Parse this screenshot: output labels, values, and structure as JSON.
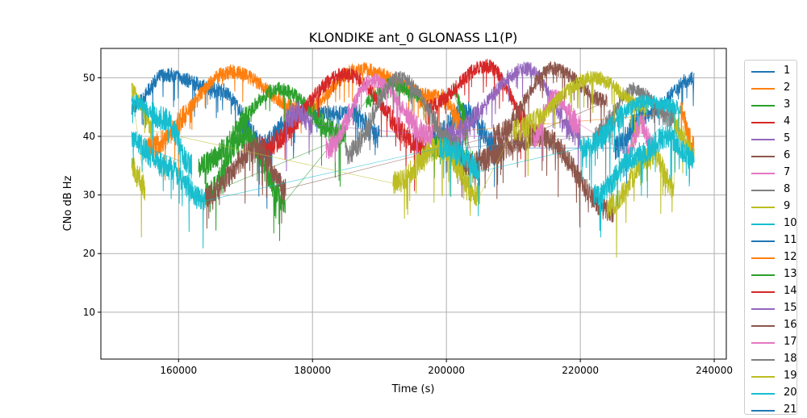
{
  "chart_data": {
    "type": "line",
    "title": "KLONDIKE ant_0 GLONASS L1(P)",
    "xlabel": "Time (s)",
    "ylabel": "CNo dB Hz",
    "xlim": [
      148400,
      241800
    ],
    "ylim": [
      2,
      55
    ],
    "xticks": [
      160000,
      180000,
      200000,
      220000,
      240000
    ],
    "xtick_labels": [
      "160000",
      "180000",
      "200000",
      "220000",
      "240000"
    ],
    "yticks": [
      10,
      20,
      30,
      40,
      50
    ],
    "ytick_labels": [
      "10",
      "20",
      "30",
      "40",
      "50"
    ],
    "grid": true,
    "legend_position": "outside-right",
    "colors": [
      "#1f77b4",
      "#ff7f0e",
      "#2ca02c",
      "#d62728",
      "#9467bd",
      "#8c564b",
      "#e377c2",
      "#7f7f7f",
      "#bcbd22",
      "#17becf"
    ],
    "legend": [
      "1",
      "2",
      "3",
      "4",
      "5",
      "6",
      "7",
      "8",
      "9",
      "10",
      "11",
      "12",
      "13",
      "14",
      "15",
      "16",
      "17",
      "18",
      "19",
      "20",
      "21"
    ],
    "series": [
      {
        "name": "1",
        "color_index": 0,
        "arcs": [
          [
            [
              153000,
              45
            ],
            [
              158000,
              50.5
            ],
            [
              166000,
              48
            ],
            [
              174000,
              37
            ]
          ],
          [
            [
              172000,
              38
            ],
            [
              178000,
              44
            ],
            [
              186000,
              44
            ],
            [
              190000,
              40
            ]
          ],
          [
            [
              198000,
              40
            ],
            [
              203000,
              44
            ],
            [
              208000,
              38
            ]
          ],
          [
            [
              225000,
              38
            ],
            [
              230000,
              44
            ],
            [
              237000,
              50
            ]
          ]
        ]
      },
      {
        "name": "2",
        "color_index": 1,
        "arcs": [
          [
            [
              155000,
              38
            ],
            [
              168000,
              51
            ],
            [
              178000,
              45
            ]
          ],
          [
            [
              178000,
              44
            ],
            [
              187000,
              51.5
            ],
            [
              198000,
              47
            ]
          ],
          [
            [
              196000,
              46
            ],
            [
              199000,
              47
            ],
            [
              203000,
              41
            ]
          ],
          [
            [
              235000,
              44
            ],
            [
              237000,
              38
            ]
          ]
        ]
      },
      {
        "name": "3",
        "color_index": 2,
        "arcs": [
          [
            [
              163000,
              35
            ],
            [
              175000,
              48
            ],
            [
              185000,
              40
            ]
          ],
          [
            [
              164000,
              30
            ],
            [
              170000,
              40
            ],
            [
              176000,
              29
            ]
          ],
          [
            [
              188000,
              46
            ],
            [
              192000,
              49
            ],
            [
              196000,
              47
            ]
          ],
          [
            [
              198000,
              38
            ],
            [
              200000,
              39
            ],
            [
              204000,
              36
            ]
          ],
          [
            [
              201000,
              48
            ],
            [
              203000,
              43
            ]
          ]
        ]
      },
      {
        "name": "4",
        "color_index": 3,
        "arcs": [
          [
            [
              172000,
              38
            ],
            [
              185000,
              50.5
            ],
            [
              197000,
              38
            ]
          ],
          [
            [
              197000,
              45
            ],
            [
              206000,
              52
            ],
            [
              214000,
              40
            ]
          ]
        ]
      },
      {
        "name": "5",
        "color_index": 4,
        "arcs": [
          [
            [
              176000,
              43
            ],
            [
              178000,
              44
            ],
            [
              180000,
              42
            ]
          ],
          [
            [
              200000,
              40
            ],
            [
              212000,
              51.5
            ],
            [
              220000,
              40
            ]
          ]
        ]
      },
      {
        "name": "6",
        "color_index": 5,
        "arcs": [
          [
            [
              164000,
              30
            ],
            [
              172000,
              38
            ],
            [
              176000,
              31
            ]
          ],
          [
            [
              207000,
              40
            ],
            [
              216000,
              51.5
            ],
            [
              224000,
              46
            ]
          ],
          [
            [
              202000,
              35
            ],
            [
              214000,
              40
            ],
            [
              225000,
              27
            ]
          ]
        ]
      },
      {
        "name": "7",
        "color_index": 6,
        "arcs": [
          [
            [
              182000,
              38
            ],
            [
              189000,
              49.5
            ],
            [
              198000,
              40
            ]
          ],
          [
            [
              213000,
              40
            ],
            [
              216000,
              47
            ],
            [
              220000,
              42
            ]
          ],
          [
            [
              227000,
              37
            ],
            [
              229000,
              42
            ],
            [
              231000,
              38
            ]
          ]
        ]
      },
      {
        "name": "8",
        "color_index": 7,
        "arcs": [
          [
            [
              185000,
              37
            ],
            [
              193000,
              50
            ],
            [
              202000,
              38
            ]
          ],
          [
            [
              222000,
              40
            ],
            [
              228000,
              48
            ],
            [
              234000,
              43
            ]
          ]
        ]
      },
      {
        "name": "9",
        "color_index": 8,
        "arcs": [
          [
            [
              153000,
              35
            ],
            [
              154000,
              33
            ],
            [
              155000,
              31
            ]
          ],
          [
            [
              153000,
              48
            ],
            [
              155000,
              44
            ],
            [
              156000,
              41
            ]
          ],
          [
            [
              192000,
              32
            ],
            [
              199000,
              38
            ],
            [
              205000,
              30
            ]
          ],
          [
            [
              210000,
              41
            ],
            [
              222000,
              50
            ],
            [
              230000,
              45
            ]
          ],
          [
            [
              224000,
              28
            ],
            [
              231000,
              37
            ],
            [
              234000,
              31
            ]
          ],
          [
            [
              234000,
              42
            ],
            [
              237000,
              37
            ]
          ]
        ]
      },
      {
        "name": "10",
        "color_index": 9,
        "arcs": [
          [
            [
              153000,
              46
            ],
            [
              158000,
              43
            ],
            [
              162000,
              35
            ]
          ],
          [
            [
              153000,
              39
            ],
            [
              158000,
              35
            ],
            [
              164000,
              29
            ]
          ],
          [
            [
              199000,
              38
            ],
            [
              202000,
              37
            ],
            [
              205000,
              34
            ]
          ],
          [
            [
              220000,
              38
            ],
            [
              230000,
              46
            ],
            [
              235000,
              45
            ]
          ],
          [
            [
              222000,
              30
            ],
            [
              229000,
              37
            ],
            [
              233000,
              40
            ],
            [
              237000,
              36
            ]
          ]
        ]
      }
    ]
  }
}
